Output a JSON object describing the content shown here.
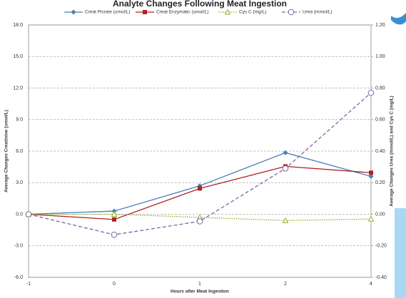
{
  "chart_data": {
    "type": "line",
    "title": "Analyte Changes Following Meat Ingestion",
    "x_label": "Hours after Meat Ingestion",
    "y_label": "Average Changes Creatinine (umol/L)",
    "y2_label": "Average Changes Urea (mmol/L) and Cys C (mg/L)",
    "categories": [
      "-1",
      "0",
      "1",
      "2",
      "4"
    ],
    "ylim": [
      -6,
      18
    ],
    "yticks": [
      {
        "value": -6,
        "label": "-6.0"
      },
      {
        "value": -3,
        "label": "-3.0"
      },
      {
        "value": 0,
        "label": "0.0"
      },
      {
        "value": 3,
        "label": "3.0"
      },
      {
        "value": 6,
        "label": "6.0"
      },
      {
        "value": 9,
        "label": "9.0"
      },
      {
        "value": 12,
        "label": "12.0"
      },
      {
        "value": 15,
        "label": "15.0"
      },
      {
        "value": 18,
        "label": "18.0"
      }
    ],
    "y2lim": [
      -0.4,
      1.2
    ],
    "y2ticks": [
      {
        "value": -0.4,
        "label": "-0.40"
      },
      {
        "value": -0.2,
        "label": "-0.20"
      },
      {
        "value": 0,
        "label": "0.00"
      },
      {
        "value": 0.2,
        "label": "0.20"
      },
      {
        "value": 0.4,
        "label": "0.40"
      },
      {
        "value": 0.6,
        "label": "0.60"
      },
      {
        "value": 0.8,
        "label": "0.80"
      },
      {
        "value": 1,
        "label": "1.00"
      },
      {
        "value": 1.2,
        "label": "1.20"
      }
    ],
    "grid": true,
    "series": [
      {
        "name": "Creat Picrate (umol/L)",
        "color": "#4a7ebb",
        "marker": "diamond",
        "dash": false,
        "values": [
          0,
          0.3,
          2.7,
          5.85,
          3.6
        ]
      },
      {
        "name": "Creat Enzymatic (umol/L)",
        "color": "#b3201f",
        "marker": "square",
        "dash": false,
        "values": [
          0,
          -0.5,
          2.45,
          4.55,
          3.95
        ]
      },
      {
        "name": "Cys C (mg/L)",
        "color": "#8db32a",
        "marker": "triangle",
        "dash": true,
        "axis": "y2",
        "values": [
          0,
          0,
          -0.02,
          -0.04,
          -0.03
        ]
      },
      {
        "name": "Urea (mmol/L)",
        "color": "#8064a2",
        "marker": "circle",
        "dash": true,
        "axis": "y2",
        "values": [
          0,
          -0.13,
          -0.045,
          0.29,
          0.77
        ]
      }
    ]
  }
}
